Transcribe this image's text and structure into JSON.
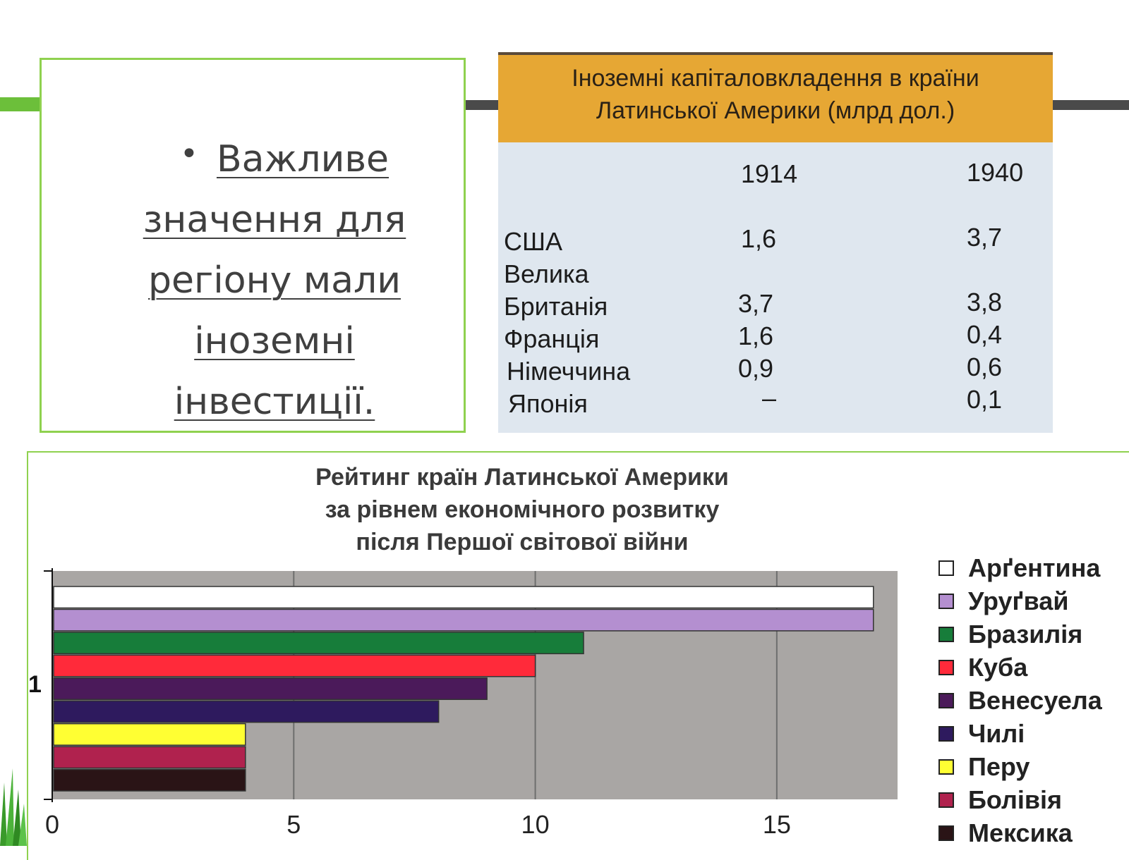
{
  "bullet_text": {
    "bullet": "•",
    "line1": "Важливе",
    "line2": "значення для",
    "line3": "регіону мали",
    "line4": "іноземні",
    "line5": "інвестиції."
  },
  "investment_table": {
    "title_line1": "Іноземні капіталовкладення в країни",
    "title_line2": "Латинської Америки (млрд дол.)",
    "year_1914": "1914",
    "year_1940": "1940",
    "rows": [
      {
        "country": "США",
        "v1914": "1,6",
        "v1940": "3,7"
      },
      {
        "country": "Велика",
        "v1914": "",
        "v1940": ""
      },
      {
        "country": "Британія",
        "v1914": "3,7",
        "v1940": "3,8"
      },
      {
        "country": "Франція",
        "v1914": "1,6",
        "v1940": "0,4"
      },
      {
        "country": "Німеччина",
        "v1914": "0,9",
        "v1940": "0,6"
      },
      {
        "country": "Японія",
        "v1914": "–",
        "v1940": "0,1"
      }
    ]
  },
  "chart_data": {
    "type": "bar",
    "title_line1": "Рейтинг країн Латинської Америки",
    "title_line2": "за рівнем економічного розвитку",
    "title_line3": "після Першої світової війни",
    "categories": [
      "Арґентина",
      "Уруґвай",
      "Бразилія",
      "Куба",
      "Венесуела",
      "Чилі",
      "Перу",
      "Болівія",
      "Мексика"
    ],
    "values": [
      17,
      17,
      11,
      10,
      9,
      8,
      4,
      4,
      4
    ],
    "colors": [
      "#ffffff",
      "#b48fd0",
      "#177d3a",
      "#ff2a3a",
      "#4b1a5a",
      "#2e1a5e",
      "#ffff33",
      "#b0224e",
      "#2a1416"
    ],
    "xticks": [
      "0",
      "5",
      "10",
      "15"
    ],
    "xlim": [
      0,
      17.5
    ],
    "y_marker": "1",
    "legend_position": "right",
    "grid": true
  }
}
